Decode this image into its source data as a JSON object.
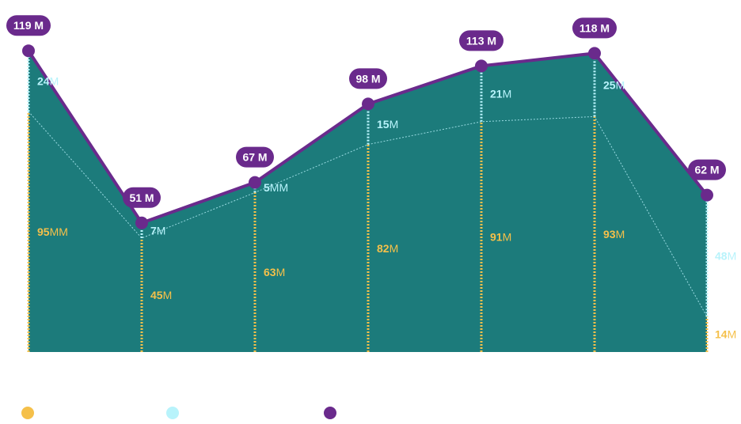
{
  "colors": {
    "area": "#1c7b7b",
    "line": "#6a2a8c",
    "lower": "#f5c04a",
    "upper": "#b8f3fb",
    "divider": "#b8f3fb"
  },
  "legend": [
    {
      "color": "#f5c04a",
      "icon": "dot-yellow"
    },
    {
      "color": "#b8f3fb",
      "icon": "dot-cyan"
    },
    {
      "color": "#6a2a8c",
      "icon": "dot-purple"
    }
  ],
  "chart_data": {
    "type": "area",
    "ylim": [
      0,
      125
    ],
    "grid": false,
    "points": 7,
    "series": [
      {
        "key": "lower",
        "color": "#f5c04a",
        "values": [
          95,
          45,
          63,
          82,
          91,
          93,
          14
        ],
        "labels": [
          [
            "95",
            "MM"
          ],
          [
            "45",
            "M"
          ],
          [
            "63",
            "M"
          ],
          [
            "82",
            "M"
          ],
          [
            "91",
            "M"
          ],
          [
            "93",
            "M"
          ],
          [
            "14",
            "M"
          ]
        ]
      },
      {
        "key": "upper",
        "color": "#b8f3fb",
        "values": [
          24,
          7,
          5,
          15,
          21,
          25,
          48
        ],
        "labels": [
          [
            "24",
            "M"
          ],
          [
            "7",
            "M"
          ],
          [
            "5",
            "MM"
          ],
          [
            "15",
            "M"
          ],
          [
            "21",
            "M"
          ],
          [
            "25",
            "M"
          ],
          [
            "48",
            "M"
          ]
        ]
      },
      {
        "key": "total",
        "color": "#6a2a8c",
        "values": [
          119,
          51,
          67,
          98,
          113,
          118,
          62
        ],
        "labels": [
          "119 M",
          "51 M",
          "67 M",
          "98 M",
          "113 M",
          "118 M",
          "62 M"
        ]
      }
    ]
  }
}
